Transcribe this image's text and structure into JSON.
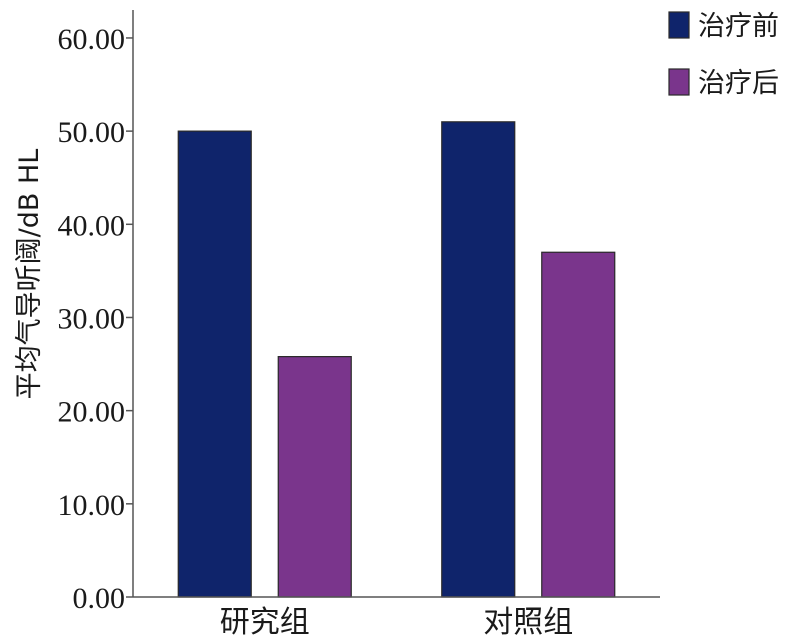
{
  "chart_data": {
    "type": "bar",
    "title": "",
    "xlabel": "",
    "ylabel": "平均气导听阈/dB HL",
    "categories": [
      "研究组",
      "对照组"
    ],
    "series": [
      {
        "name": "治疗前",
        "values": [
          50.0,
          51.0
        ],
        "color": "#0f246b"
      },
      {
        "name": "治疗后",
        "values": [
          25.8,
          37.0
        ],
        "color": "#7a358c"
      }
    ],
    "ylim": [
      0,
      63
    ],
    "yticks": [
      0,
      10,
      20,
      30,
      40,
      50,
      60
    ],
    "ytick_labels": [
      "0.00",
      "10.00",
      "20.00",
      "30.00",
      "40.00",
      "50.00",
      "60.00"
    ],
    "grid": false,
    "legend_position": "top-right"
  }
}
